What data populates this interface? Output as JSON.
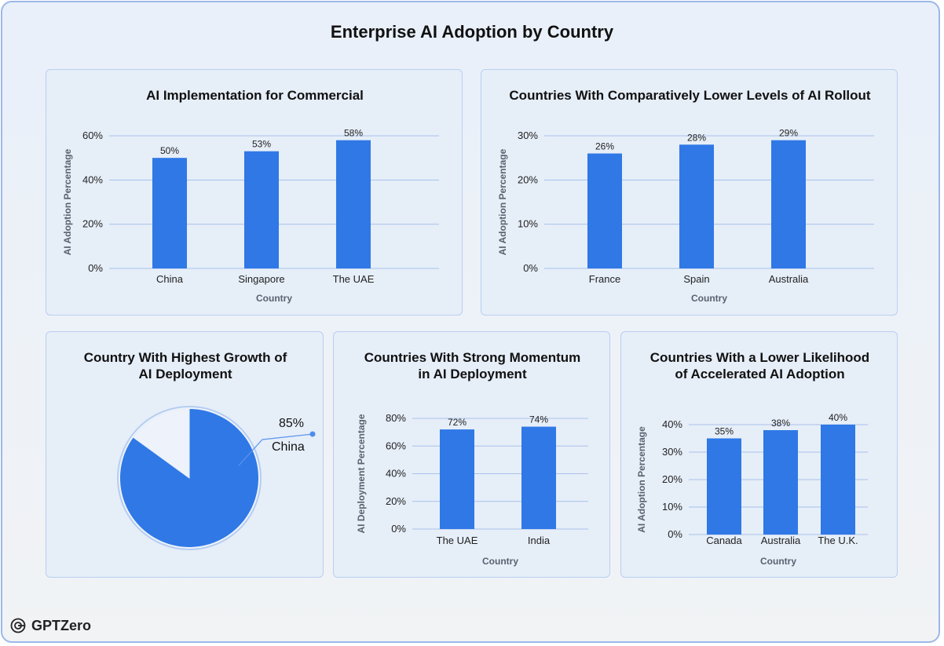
{
  "page": {
    "title": "Enterprise AI Adoption by Country"
  },
  "brand": {
    "name": "GPTZero"
  },
  "colors": {
    "bar": "#2f78e6",
    "grid": "#a9c2ea",
    "pie_other": "#eef3fb"
  },
  "chart_data": [
    {
      "id": "c1",
      "type": "bar",
      "title": [
        "AI Implementation for Commercial"
      ],
      "categories": [
        "China",
        "Singapore",
        "The UAE"
      ],
      "values": [
        50,
        53,
        58
      ],
      "data_labels": [
        "50%",
        "53%",
        "58%"
      ],
      "yticks": [
        0,
        20,
        40,
        60
      ],
      "ytick_labels": [
        "0%",
        "20%",
        "40%",
        "60%"
      ],
      "ylim": [
        0,
        60
      ],
      "xlabel": "Country",
      "ylabel": "AI Adoption Percentage",
      "grid": true
    },
    {
      "id": "c2",
      "type": "bar",
      "title": [
        "Countries With Comparatively Lower Levels of AI Rollout"
      ],
      "categories": [
        "France",
        "Spain",
        "Australia"
      ],
      "values": [
        26,
        28,
        29
      ],
      "data_labels": [
        "26%",
        "28%",
        "29%"
      ],
      "yticks": [
        0,
        10,
        20,
        30
      ],
      "ytick_labels": [
        "0%",
        "10%",
        "20%",
        "30%"
      ],
      "ylim": [
        0,
        30
      ],
      "xlabel": "Country",
      "ylabel": "AI Adoption Percentage",
      "grid": true
    },
    {
      "id": "c3",
      "type": "pie",
      "title": [
        "Country With Highest Growth of",
        "AI Deployment"
      ],
      "slices": [
        {
          "label": "China",
          "value": 85,
          "value_label": "85%"
        },
        {
          "label": "",
          "value": 15,
          "value_label": ""
        }
      ]
    },
    {
      "id": "c4",
      "type": "bar",
      "title": [
        "Countries With Strong Momentum",
        "in AI Deployment"
      ],
      "categories": [
        "The UAE",
        "India"
      ],
      "values": [
        72,
        74
      ],
      "data_labels": [
        "72%",
        "74%"
      ],
      "yticks": [
        0,
        20,
        40,
        60,
        80
      ],
      "ytick_labels": [
        "0%",
        "20%",
        "40%",
        "60%",
        "80%"
      ],
      "ylim": [
        0,
        80
      ],
      "xlabel": "Country",
      "ylabel": "AI Deployment Percentage",
      "grid": true
    },
    {
      "id": "c5",
      "type": "bar",
      "title": [
        "Countries With a Lower Likelihood",
        "of Accelerated AI Adoption"
      ],
      "categories": [
        "Canada",
        "Australia",
        "The U.K."
      ],
      "values": [
        35,
        38,
        40
      ],
      "data_labels": [
        "35%",
        "38%",
        "40%"
      ],
      "yticks": [
        0,
        10,
        20,
        30,
        40
      ],
      "ytick_labels": [
        "0%",
        "10%",
        "20%",
        "30%",
        "40%"
      ],
      "ylim": [
        0,
        40
      ],
      "xlabel": "Country",
      "ylabel": "AI Adoption Percentage",
      "grid": true
    }
  ]
}
